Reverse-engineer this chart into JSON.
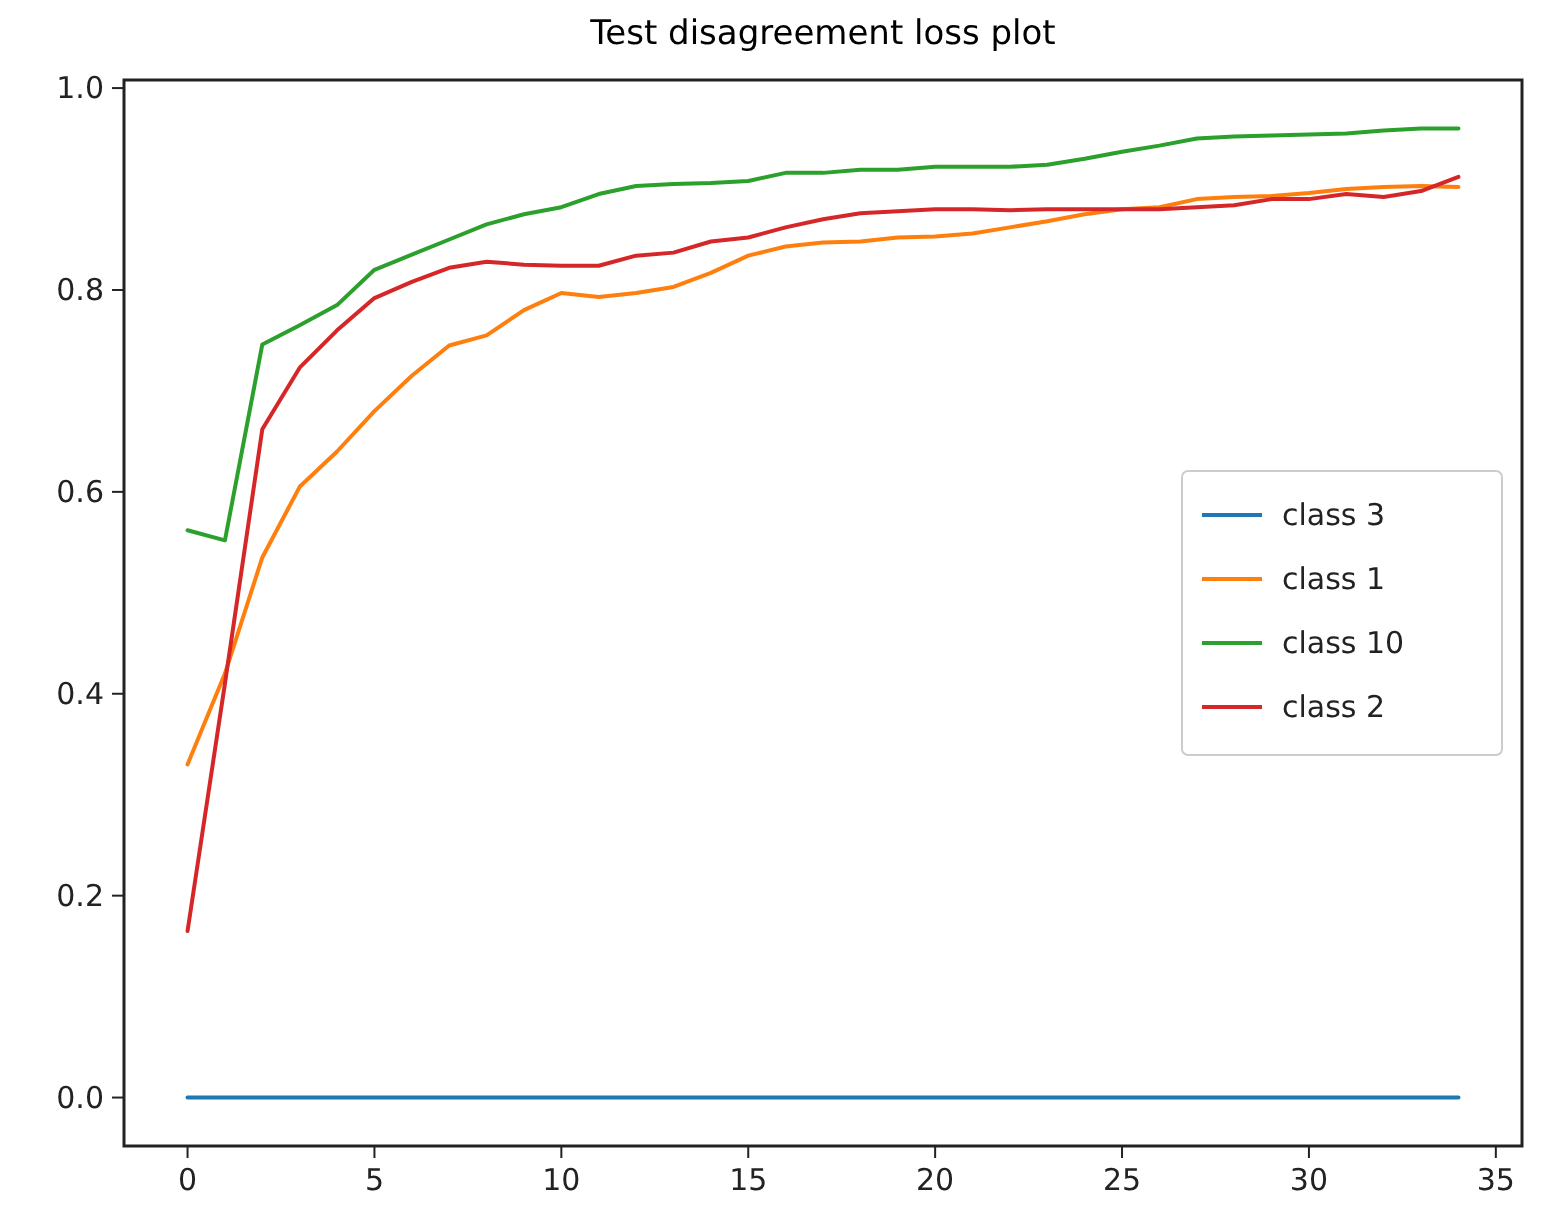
{
  "chart_data": {
    "type": "line",
    "title": "Test disagreement loss plot",
    "x": [
      0,
      1,
      2,
      3,
      4,
      5,
      6,
      7,
      8,
      9,
      10,
      11,
      12,
      13,
      14,
      15,
      16,
      17,
      18,
      19,
      20,
      21,
      22,
      23,
      24,
      25,
      26,
      27,
      28,
      29,
      30,
      31,
      32,
      33,
      34
    ],
    "series": [
      {
        "name": "class 3",
        "color": "#1f77b4",
        "values": [
          0,
          0,
          0,
          0,
          0,
          0,
          0,
          0,
          0,
          0,
          0,
          0,
          0,
          0,
          0,
          0,
          0,
          0,
          0,
          0,
          0,
          0,
          0,
          0,
          0,
          0,
          0,
          0,
          0,
          0,
          0,
          0,
          0,
          0,
          0
        ]
      },
      {
        "name": "class 1",
        "color": "#ff7f0e",
        "values": [
          0.33,
          0.42,
          0.535,
          0.605,
          0.64,
          0.68,
          0.715,
          0.745,
          0.755,
          0.78,
          0.797,
          0.793,
          0.797,
          0.803,
          0.817,
          0.834,
          0.843,
          0.847,
          0.848,
          0.852,
          0.853,
          0.856,
          0.862,
          0.868,
          0.875,
          0.88,
          0.882,
          0.89,
          0.892,
          0.893,
          0.896,
          0.9,
          0.902,
          0.903,
          0.902
        ]
      },
      {
        "name": "class 10",
        "color": "#2ca02c",
        "values": [
          0.562,
          0.552,
          0.746,
          0.765,
          0.785,
          0.82,
          0.835,
          0.85,
          0.865,
          0.875,
          0.882,
          0.895,
          0.903,
          0.905,
          0.906,
          0.908,
          0.916,
          0.916,
          0.919,
          0.919,
          0.922,
          0.922,
          0.922,
          0.924,
          0.93,
          0.937,
          0.943,
          0.95,
          0.952,
          0.953,
          0.954,
          0.955,
          0.958,
          0.96,
          0.96
        ]
      },
      {
        "name": "class 2",
        "color": "#d62728",
        "values": [
          0.165,
          0.41,
          0.662,
          0.723,
          0.76,
          0.792,
          0.808,
          0.822,
          0.828,
          0.825,
          0.824,
          0.824,
          0.834,
          0.837,
          0.848,
          0.852,
          0.862,
          0.87,
          0.876,
          0.878,
          0.88,
          0.88,
          0.879,
          0.88,
          0.88,
          0.88,
          0.88,
          0.882,
          0.884,
          0.89,
          0.89,
          0.895,
          0.892,
          0.898,
          0.912
        ]
      }
    ],
    "xlim": [
      -1.7,
      35.7
    ],
    "xticks": [
      0,
      5,
      10,
      15,
      20,
      25,
      30,
      35
    ],
    "ylim": [
      -0.048,
      1.008
    ],
    "yticks": [
      {
        "value": 0,
        "label": "0.0"
      },
      {
        "value": 0.2,
        "label": "0.2"
      },
      {
        "value": 0.4,
        "label": "0.4"
      },
      {
        "value": 0.6,
        "label": "0.6"
      },
      {
        "value": 0.8,
        "label": "0.8"
      },
      {
        "value": 1,
        "label": "1.0"
      }
    ],
    "grid": false,
    "legend": "center right",
    "marker": "none",
    "line_style": "solid"
  }
}
